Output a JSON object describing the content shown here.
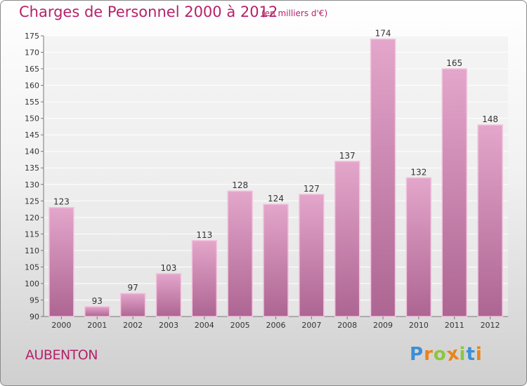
{
  "chart_data": {
    "type": "bar",
    "title": "Charges de Personnel 2000 à 2012",
    "subtitle": "(en milliers d'€)",
    "categories": [
      "2000",
      "2001",
      "2002",
      "2003",
      "2004",
      "2005",
      "2006",
      "2007",
      "2008",
      "2009",
      "2010",
      "2011",
      "2012"
    ],
    "values": [
      123,
      93,
      97,
      103,
      113,
      128,
      124,
      127,
      137,
      174,
      132,
      165,
      148
    ],
    "ylim": [
      90,
      175
    ],
    "yticks": [
      90,
      95,
      100,
      105,
      110,
      115,
      120,
      125,
      130,
      135,
      140,
      145,
      150,
      155,
      160,
      165,
      170,
      175
    ],
    "grid": true,
    "bar_color": "#d98db8",
    "xlabel": "",
    "ylabel": ""
  },
  "commune": "AUBENTON",
  "logo": {
    "letters": [
      "P",
      "r",
      "o",
      "x",
      "i",
      "t",
      "i"
    ],
    "colors": [
      "#3a8fd6",
      "#e8841a",
      "#8cc63f",
      "#e8841a",
      "#8cc63f",
      "#3a8fd6",
      "#e8841a"
    ]
  }
}
